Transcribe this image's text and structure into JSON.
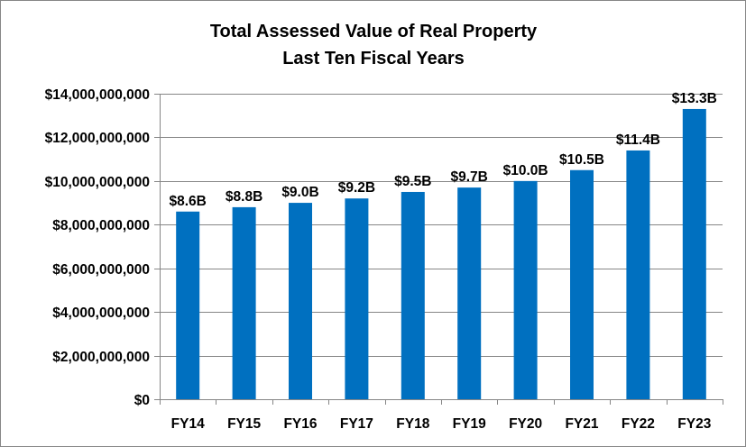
{
  "chart_data": {
    "type": "bar",
    "title": "Total Assessed Value of Real Property",
    "subtitle": "Last Ten Fiscal Years",
    "xlabel": "",
    "ylabel": "",
    "categories": [
      "FY14",
      "FY15",
      "FY16",
      "FY17",
      "FY18",
      "FY19",
      "FY20",
      "FY21",
      "FY22",
      "FY23"
    ],
    "values": [
      8600000000,
      8800000000,
      9000000000,
      9200000000,
      9500000000,
      9700000000,
      10000000000,
      10500000000,
      11400000000,
      13300000000
    ],
    "data_labels": [
      "$8.6B",
      "$8.8B",
      "$9.0B",
      "$9.2B",
      "$9.5B",
      "$9.7B",
      "$10.0B",
      "$10.5B",
      "$11.4B",
      "$13.3B"
    ],
    "ylim": [
      0,
      14000000000
    ],
    "y_ticks": [
      0,
      2000000000,
      4000000000,
      6000000000,
      8000000000,
      10000000000,
      12000000000,
      14000000000
    ],
    "y_tick_labels": [
      "$0",
      "$2,000,000,000",
      "$4,000,000,000",
      "$6,000,000,000",
      "$8,000,000,000",
      "$10,000,000,000",
      "$12,000,000,000",
      "$14,000,000,000"
    ],
    "grid": true,
    "legend": "none",
    "bar_color": "#0070C0",
    "grid_color": "#868686"
  }
}
